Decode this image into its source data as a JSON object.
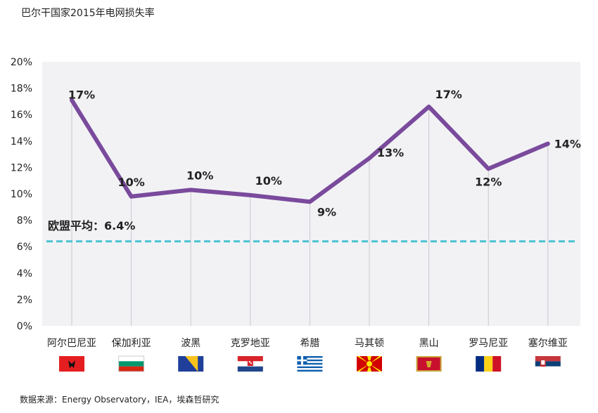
{
  "chart_data": {
    "type": "line",
    "title": "巴尔干国家2015年电网损失率",
    "categories": [
      "阿尔巴尼亚",
      "保加利亚",
      "波黑",
      "克罗地亚",
      "希腊",
      "马其顿",
      "黑山",
      "罗马尼亚",
      "塞尔维亚"
    ],
    "values": [
      17.1,
      9.8,
      10.3,
      9.9,
      9.4,
      12.7,
      16.6,
      11.9,
      13.8
    ],
    "data_labels": [
      "17%",
      "10%",
      "10%",
      "10%",
      "9%",
      "13%",
      "17%",
      "12%",
      "14%"
    ],
    "ylim": [
      0,
      20
    ],
    "yticks": [
      "0%",
      "2%",
      "4%",
      "6%",
      "8%",
      "10%",
      "12%",
      "14%",
      "16%",
      "18%",
      "20%"
    ],
    "average": {
      "label": "欧盟平均：6.4%",
      "value": 6.4,
      "color": "#4cc3d1"
    },
    "line_color": "#7a4a9c",
    "plot_background": "#f2f2f5",
    "grid": false,
    "flags": [
      "albania-flag",
      "bulgaria-flag",
      "bosnia-flag",
      "croatia-flag",
      "greece-flag",
      "macedonia-flag",
      "montenegro-flag",
      "romania-flag",
      "serbia-flag"
    ]
  },
  "source": "数据来源：Energy Observatory，IEA，埃森哲研究"
}
